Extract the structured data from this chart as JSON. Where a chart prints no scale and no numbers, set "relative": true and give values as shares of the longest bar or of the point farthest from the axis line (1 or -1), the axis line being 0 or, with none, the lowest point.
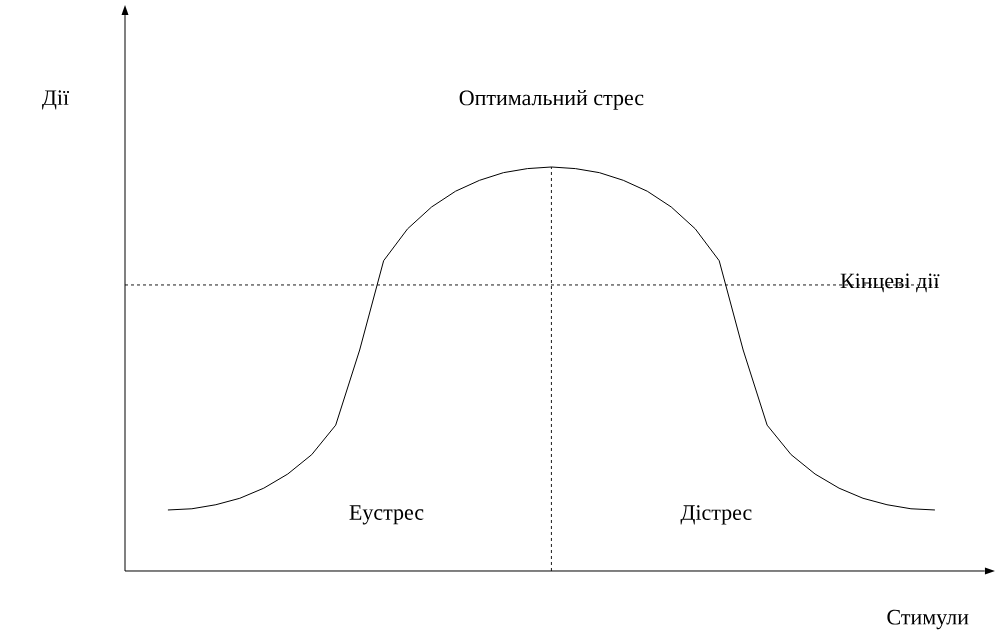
{
  "chart_data": {
    "type": "line",
    "relative": true,
    "xlabel": "Стимули",
    "ylabel": "Дії",
    "categories": [
      null,
      null,
      null,
      null,
      null,
      null,
      null,
      null,
      null,
      null,
      null,
      null,
      null,
      null,
      null,
      null,
      null,
      null,
      null,
      null,
      null,
      null,
      null,
      null,
      null,
      null,
      null,
      null,
      null,
      null,
      null,
      null,
      null
    ],
    "series": [
      {
        "color": "#000000",
        "values": [
          0.151,
          0.154,
          0.164,
          0.18,
          0.205,
          0.24,
          0.288,
          0.361,
          0.547,
          0.768,
          0.847,
          0.901,
          0.94,
          0.967,
          0.986,
          0.996,
          1,
          0.996,
          0.986,
          0.967,
          0.94,
          0.901,
          0.847,
          0.768,
          0.547,
          0.361,
          0.288,
          0.24,
          0.205,
          0.18,
          0.164,
          0.154,
          0.151
        ]
      }
    ],
    "ref_lines": [
      {
        "axis": "y",
        "value": 0.708,
        "label": "Кінцеві дії",
        "line_style": "dashed"
      }
    ],
    "annotations": [
      "Оптимальний стрес",
      "Еустрес",
      "Дістрес"
    ]
  }
}
